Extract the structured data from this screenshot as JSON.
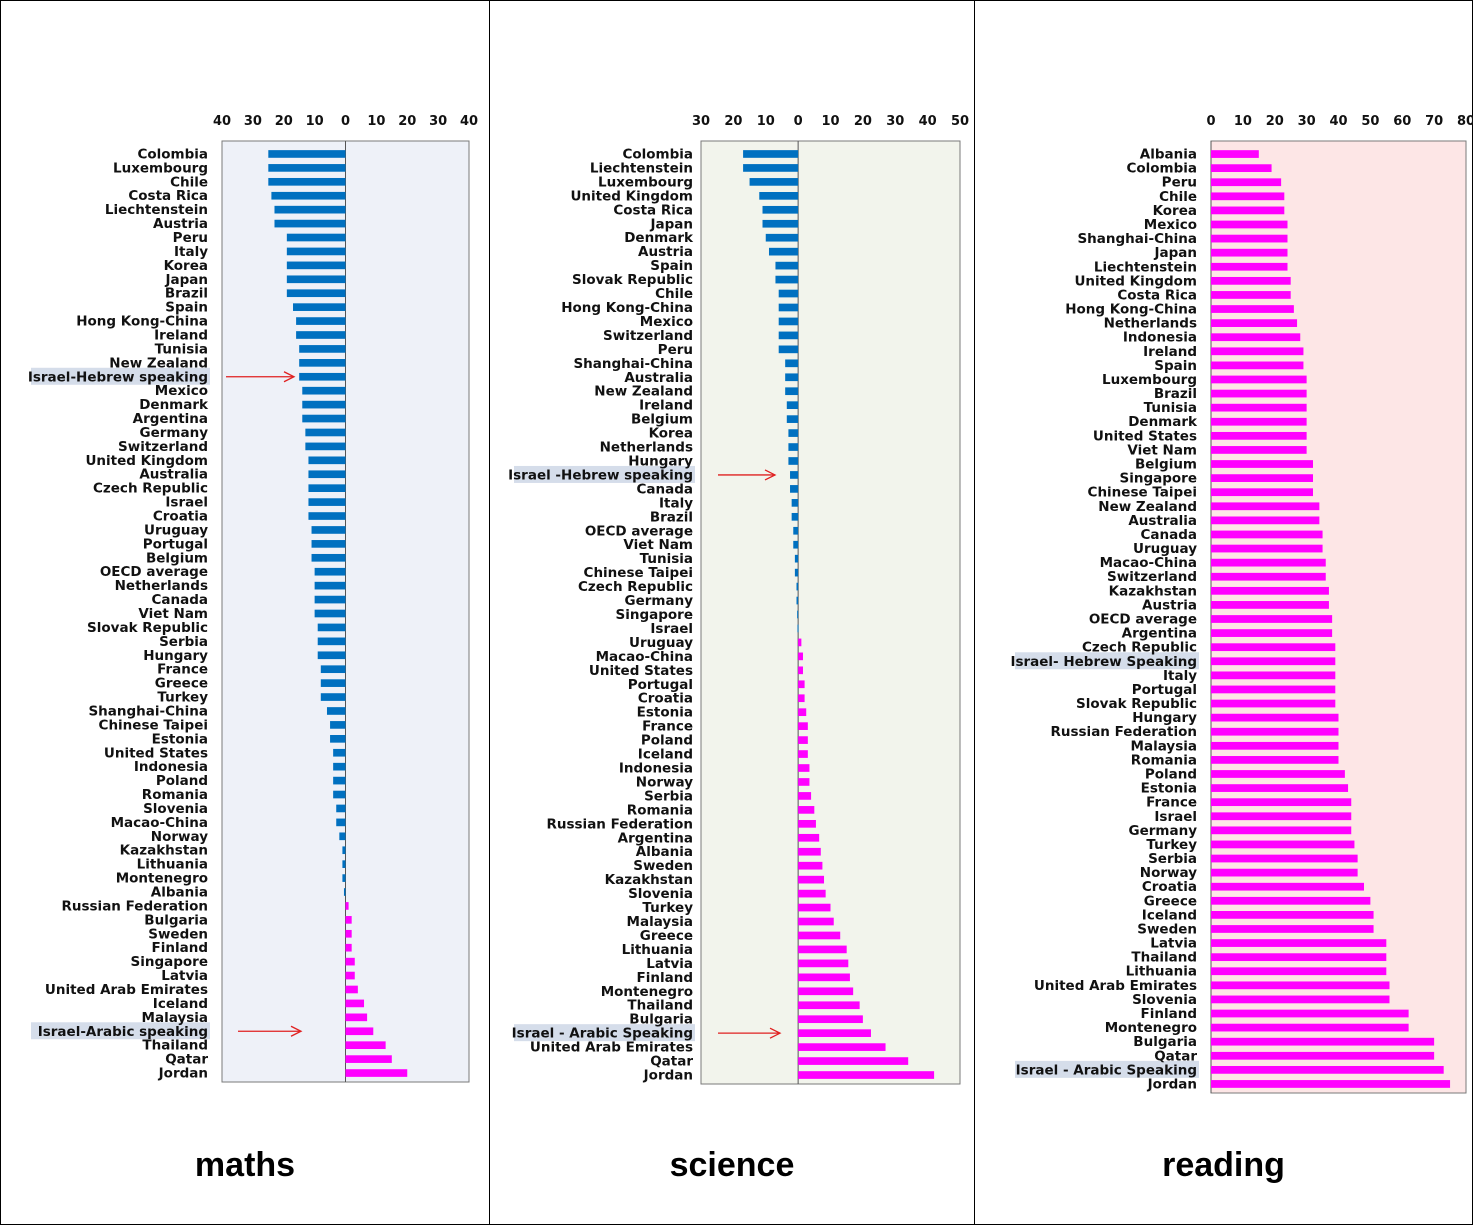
{
  "colors": {
    "negative": "#0070C0",
    "positive": "#FF00FF",
    "highlight": "#D5DDEA",
    "arrow": "#E02020"
  },
  "chart_data": [
    {
      "type": "bar",
      "orientation": "horizontal",
      "caption": "maths",
      "xlim": [
        -40,
        40
      ],
      "xticks": [
        "40",
        "30",
        "20",
        "10",
        "0",
        "10",
        "20",
        "30",
        "40"
      ],
      "highlighted": [
        "Israel-Hebrew speaking",
        "Israel-Arabic speaking"
      ],
      "categories": [
        "Colombia",
        "Luxembourg",
        "Chile",
        "Costa Rica",
        "Liechtenstein",
        "Austria",
        "Peru",
        "Italy",
        "Korea",
        "Japan",
        "Brazil",
        "Spain",
        "Hong Kong-China",
        "Ireland",
        "Tunisia",
        "New Zealand",
        "Israel-Hebrew speaking",
        "Mexico",
        "Denmark",
        "Argentina",
        "Germany",
        "Switzerland",
        "United Kingdom",
        "Australia",
        "Czech Republic",
        "Israel",
        "Croatia",
        "Uruguay",
        "Portugal",
        "Belgium",
        "OECD average",
        "Netherlands",
        "Canada",
        "Viet Nam",
        "Slovak Republic",
        "Serbia",
        "Hungary",
        "France",
        "Greece",
        "Turkey",
        "Shanghai-China",
        "Chinese Taipei",
        "Estonia",
        "United States",
        "Indonesia",
        "Poland",
        "Romania",
        "Slovenia",
        "Macao-China",
        "Norway",
        "Kazakhstan",
        "Lithuania",
        "Montenegro",
        "Albania",
        "Russian Federation",
        "Bulgaria",
        "Sweden",
        "Finland",
        "Singapore",
        "Latvia",
        "United Arab Emirates",
        "Iceland",
        "Malaysia",
        "Israel-Arabic speaking",
        "Thailand",
        "Qatar",
        "Jordan"
      ],
      "values": [
        -25,
        -25,
        -25,
        -24,
        -23,
        -23,
        -19,
        -19,
        -19,
        -19,
        -19,
        -17,
        -16,
        -16,
        -15,
        -15,
        -15,
        -14,
        -14,
        -14,
        -13,
        -13,
        -12,
        -12,
        -12,
        -12,
        -12,
        -11,
        -11,
        -11,
        -10,
        -10,
        -10,
        -10,
        -9,
        -9,
        -9,
        -8,
        -8,
        -8,
        -6,
        -5,
        -5,
        -4,
        -4,
        -4,
        -4,
        -3,
        -3,
        -2,
        -1,
        -1,
        -1,
        -0.5,
        1,
        2,
        2,
        2,
        3,
        3,
        4,
        6,
        7,
        9,
        13,
        15,
        20
      ]
    },
    {
      "type": "bar",
      "orientation": "horizontal",
      "caption": "science",
      "xlim": [
        -30,
        50
      ],
      "xticks": [
        "30",
        "20",
        "10",
        "0",
        "10",
        "20",
        "30",
        "40",
        "50"
      ],
      "highlighted": [
        "Israel -Hebrew speaking",
        "Israel - Arabic Speaking"
      ],
      "categories": [
        "Colombia",
        "Liechtenstein",
        "Luxembourg",
        "United Kingdom",
        "Costa Rica",
        "Japan",
        "Denmark",
        "Austria",
        "Spain",
        "Slovak Republic",
        "Chile",
        "Hong Kong-China",
        "Mexico",
        "Switzerland",
        "Peru",
        "Shanghai-China",
        "Australia",
        "New Zealand",
        "Ireland",
        "Belgium",
        "Korea",
        "Netherlands",
        "Hungary",
        "Israel -Hebrew speaking",
        "Canada",
        "Italy",
        "Brazil",
        "OECD average",
        "Viet Nam",
        "Tunisia",
        "Chinese Taipei",
        "Czech Republic",
        "Germany",
        "Singapore",
        "Israel",
        "Uruguay",
        "Macao-China",
        "United States",
        "Portugal",
        "Croatia",
        "Estonia",
        "France",
        "Poland",
        "Iceland",
        "Indonesia",
        "Norway",
        "Serbia",
        "Romania",
        "Russian Federation",
        "Argentina",
        "Albania",
        "Sweden",
        "Kazakhstan",
        "Slovenia",
        "Turkey",
        "Malaysia",
        "Greece",
        "Lithuania",
        "Latvia",
        "Finland",
        "Montenegro",
        "Thailand",
        "Bulgaria",
        "Israel - Arabic Speaking",
        "United Arab Emirates",
        "Qatar",
        "Jordan"
      ],
      "values": [
        -17,
        -17,
        -15,
        -12,
        -11,
        -11,
        -10,
        -9,
        -7,
        -7,
        -6,
        -6,
        -6,
        -6,
        -6,
        -4,
        -4,
        -4,
        -3.5,
        -3.5,
        -3,
        -3,
        -3,
        -2.5,
        -2.5,
        -2,
        -2,
        -1.5,
        -1.5,
        -1,
        -1,
        -0.5,
        -0.5,
        -0.3,
        -0.2,
        1,
        1.5,
        1.5,
        2,
        2,
        2.5,
        3,
        3,
        3,
        3.5,
        3.5,
        4,
        5,
        5.5,
        6.5,
        7,
        7.5,
        8,
        8.5,
        10,
        11,
        13,
        15,
        15.5,
        16,
        17,
        19,
        20,
        22.5,
        27,
        34,
        42
      ]
    },
    {
      "type": "bar",
      "orientation": "horizontal",
      "caption": "reading",
      "xlim": [
        0,
        80
      ],
      "xticks": [
        "0",
        "10",
        "20",
        "30",
        "40",
        "50",
        "60",
        "70",
        "80"
      ],
      "highlighted": [
        "Israel- Hebrew Speaking",
        "Israel - Arabic Speaking"
      ],
      "categories": [
        "Albania",
        "Colombia",
        "Peru",
        "Chile",
        "Korea",
        "Mexico",
        "Shanghai-China",
        "Japan",
        "Liechtenstein",
        "United Kingdom",
        "Costa Rica",
        "Hong Kong-China",
        "Netherlands",
        "Indonesia",
        "Ireland",
        "Spain",
        "Luxembourg",
        "Brazil",
        "Tunisia",
        "Denmark",
        "United States",
        "Viet Nam",
        "Belgium",
        "Singapore",
        "Chinese Taipei",
        "New Zealand",
        "Australia",
        "Canada",
        "Uruguay",
        "Macao-China",
        "Switzerland",
        "Kazakhstan",
        "Austria",
        "OECD average",
        "Argentina",
        "Czech Republic",
        "Israel- Hebrew Speaking",
        "Italy",
        "Portugal",
        "Slovak Republic",
        "Hungary",
        "Russian Federation",
        "Malaysia",
        "Romania",
        "Poland",
        "Estonia",
        "France",
        "Israel",
        "Germany",
        "Turkey",
        "Serbia",
        "Norway",
        "Croatia",
        "Greece",
        "Iceland",
        "Sweden",
        "Latvia",
        "Thailand",
        "Lithuania",
        "United Arab Emirates",
        "Slovenia",
        "Finland",
        "Montenegro",
        "Bulgaria",
        "Qatar",
        "Israel - Arabic Speaking",
        "Jordan"
      ],
      "values": [
        15,
        19,
        22,
        23,
        23,
        24,
        24,
        24,
        24,
        25,
        25,
        26,
        27,
        28,
        29,
        29,
        30,
        30,
        30,
        30,
        30,
        30,
        32,
        32,
        32,
        34,
        34,
        35,
        35,
        36,
        36,
        37,
        37,
        38,
        38,
        39,
        39,
        39,
        39,
        39,
        40,
        40,
        40,
        40,
        42,
        43,
        44,
        44,
        44,
        45,
        46,
        46,
        48,
        50,
        51,
        51,
        55,
        55,
        55,
        56,
        56,
        62,
        62,
        70,
        70,
        73,
        75
      ]
    }
  ]
}
